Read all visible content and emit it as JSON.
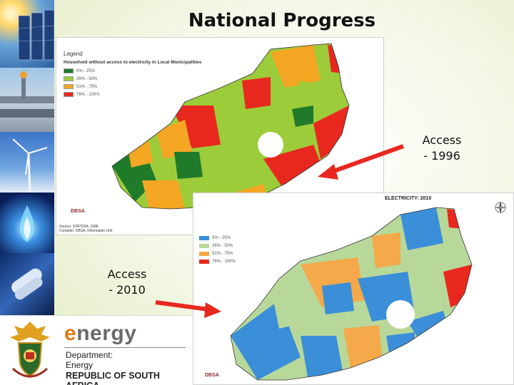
{
  "slide": {
    "title": "National Progress"
  },
  "branding": {
    "energy_word_first": "e",
    "energy_word_rest": "nergy",
    "department_line1": "Department:",
    "department_line2": "Energy",
    "department_line3": "REPUBLIC OF SOUTH AFRICA"
  },
  "map_1996": {
    "legend_title": "Legend",
    "legend_subtitle": "Household without access to electricity in Local Municipalities",
    "legend_items": [
      {
        "label": "0% - 25%",
        "color": "#1f7a2a"
      },
      {
        "label": "26% - 50%",
        "color": "#9ccc3a"
      },
      {
        "label": "51% - 75%",
        "color": "#f5a623"
      },
      {
        "label": "76% - 100%",
        "color": "#e8281e"
      }
    ],
    "source_line1": "Source: STATSSA, 1996",
    "source_line2": "Compiler: DBSA, Information Unit",
    "logo_text": "DBSA",
    "label": "Access\n- 1996",
    "label_line1": "Access",
    "label_line2": "- 1996"
  },
  "map_2010": {
    "title_fragment": "ELECTRICITY: 2010",
    "legend_items": [
      {
        "label": "0% - 25%",
        "color": "#3a8fd8"
      },
      {
        "label": "26% - 50%",
        "color": "#b8d89a"
      },
      {
        "label": "51% - 75%",
        "color": "#f5a94a"
      },
      {
        "label": "76% - 100%",
        "color": "#e8281e"
      }
    ],
    "logo_text": "DBSA",
    "label_line1": "Access",
    "label_line2": "- 2010"
  },
  "colors": {
    "arrow": "#e8281e",
    "title_text": "#111111",
    "energy_orange": "#e07a1a"
  },
  "icons": [
    "coat-of-arms-icon",
    "compass-icon",
    "red-arrow-icon"
  ]
}
